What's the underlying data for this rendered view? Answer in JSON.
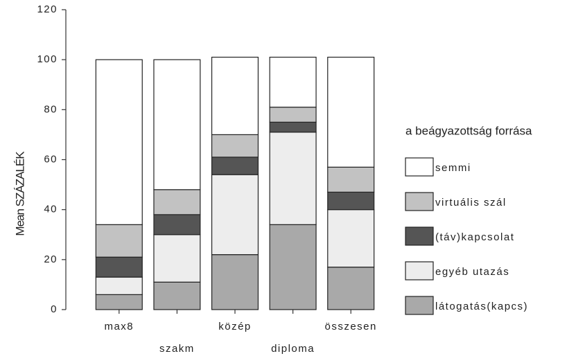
{
  "chart_data": {
    "type": "stacked_bar",
    "y_label": "Mean SZÁZALÉK",
    "legend_title": "a beágyazottság forrása",
    "categories": [
      "max8",
      "szakm",
      "közép",
      "diploma",
      "összesen"
    ],
    "series": [
      {
        "name": "látogatás(kapcs)",
        "color": "#a9a9a9",
        "values": [
          6,
          11,
          22,
          34,
          17
        ]
      },
      {
        "name": "egyéb utazás",
        "color": "#ededed",
        "values": [
          7,
          19,
          32,
          37,
          23
        ]
      },
      {
        "name": "(táv)kapcsolat",
        "color": "#555555",
        "values": [
          8,
          8,
          7,
          4,
          7
        ]
      },
      {
        "name": "virtuális szál",
        "color": "#c2c2c2",
        "values": [
          13,
          10,
          9,
          6,
          10
        ]
      },
      {
        "name": "semmi",
        "color": "#ffffff",
        "values": [
          66,
          52,
          31,
          20,
          44
        ]
      }
    ],
    "ylim": [
      0,
      120
    ],
    "yticks": [
      0,
      20,
      40,
      60,
      80,
      100,
      120
    ]
  }
}
